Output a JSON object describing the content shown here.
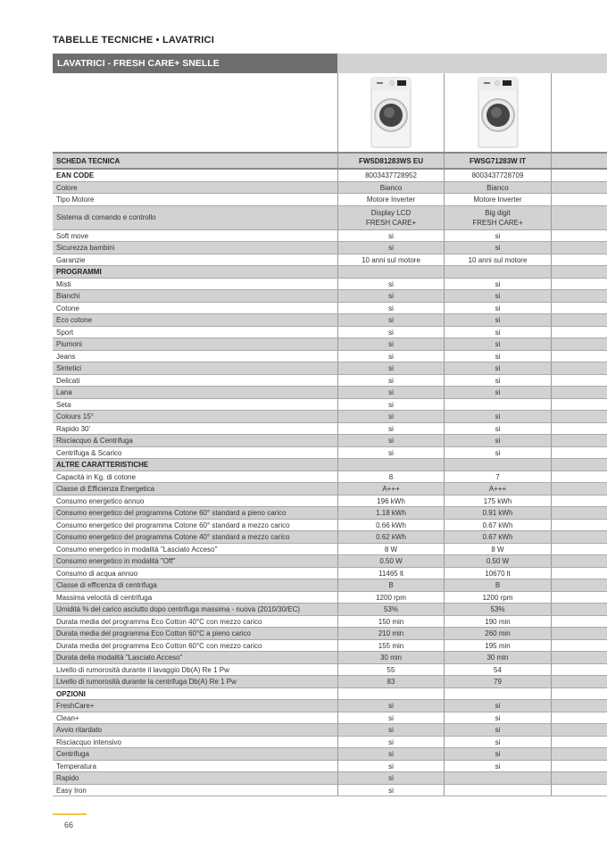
{
  "page_title": "TABELLE TECNICHE • LAVATRICI",
  "table_title": "LAVATRICI - FRESH CARE+ SNELLE",
  "header": {
    "label": "SCHEDA TECNICA",
    "models": [
      "FWSD81283WS EU",
      "FWSG71283W IT",
      ""
    ]
  },
  "rows": [
    {
      "label": "EAN CODE",
      "bold": true,
      "v": [
        "8003437728952",
        "8003437728709",
        ""
      ]
    },
    {
      "label": "Colore",
      "v": [
        "Bianco",
        "Bianco",
        ""
      ]
    },
    {
      "label": "Tipo Motore",
      "v": [
        "Motore Inverter",
        "Motore Inverter",
        ""
      ]
    },
    {
      "label": "Sistema di comando e controllo",
      "double": true,
      "v": [
        "Display LCD\nFRESH CARE+",
        "Big digit\nFRESH CARE+",
        ""
      ]
    },
    {
      "label": "Soft move",
      "v": [
        "si",
        "si",
        ""
      ]
    },
    {
      "label": "Sicurezza bambini",
      "v": [
        "si",
        "si",
        ""
      ]
    },
    {
      "label": "Garanzie",
      "v": [
        "10 anni sul motore",
        "10 anni sul motore",
        ""
      ]
    },
    {
      "label": "PROGRAMMI",
      "bold": true,
      "v": [
        "",
        "",
        ""
      ]
    },
    {
      "label": "Misti",
      "v": [
        "si",
        "si",
        ""
      ]
    },
    {
      "label": "Bianchi",
      "v": [
        "si",
        "si",
        ""
      ]
    },
    {
      "label": "Cotone",
      "v": [
        "si",
        "si",
        ""
      ]
    },
    {
      "label": "Eco cotone",
      "v": [
        "si",
        "si",
        ""
      ]
    },
    {
      "label": "Sport",
      "v": [
        "si",
        "si",
        ""
      ]
    },
    {
      "label": "Piumoni",
      "v": [
        "si",
        "si",
        ""
      ]
    },
    {
      "label": "Jeans",
      "v": [
        "si",
        "si",
        ""
      ]
    },
    {
      "label": "Sintetici",
      "v": [
        "si",
        "si",
        ""
      ]
    },
    {
      "label": "Delicati",
      "v": [
        "si",
        "si",
        ""
      ]
    },
    {
      "label": "Lana",
      "v": [
        "si",
        "si",
        ""
      ]
    },
    {
      "label": "Seta",
      "v": [
        "si",
        "",
        ""
      ]
    },
    {
      "label": "Colours 15°",
      "v": [
        "si",
        "si",
        ""
      ]
    },
    {
      "label": "Rapido 30'",
      "v": [
        "si",
        "si",
        ""
      ]
    },
    {
      "label": "Risciacquo & Centrifuga",
      "v": [
        "si",
        "si",
        ""
      ]
    },
    {
      "label": "Centrifuga & Scarico",
      "v": [
        "si",
        "si",
        ""
      ]
    },
    {
      "label": "ALTRE CARATTERISTICHE",
      "bold": true,
      "v": [
        "",
        "",
        ""
      ]
    },
    {
      "label": "Capacità in Kg. di cotone",
      "v": [
        "8",
        "7",
        ""
      ]
    },
    {
      "label": "Classe di Efficienza Energetica",
      "v": [
        "A+++",
        "A+++",
        ""
      ]
    },
    {
      "label": "Consumo energetico annuo",
      "v": [
        "196 kWh",
        "175 kWh",
        ""
      ]
    },
    {
      "label": "Consumo energetico del programma Cotone 60° standard a pieno carico",
      "v": [
        "1.18 kWh",
        "0.91 kWh",
        ""
      ]
    },
    {
      "label": "Consumo energetico del programma Cotone 60° standard a mezzo carico",
      "v": [
        "0.66 kWh",
        "0.67 kWh",
        ""
      ]
    },
    {
      "label": "Consumo energetico del programma Cotone 40° standard a mezzo carico",
      "v": [
        "0.62 kWh",
        "0.67 kWh",
        ""
      ]
    },
    {
      "label": "Consumo energetico in modalità \"Lasciato Acceso\"",
      "v": [
        "8 W",
        "8 W",
        ""
      ]
    },
    {
      "label": "Consumo energetico in modalità \"Off\"",
      "v": [
        "0.50 W",
        "0.50 W",
        ""
      ]
    },
    {
      "label": "Consumo di acqua annuo",
      "v": [
        "11465 lt",
        "10670 lt",
        ""
      ]
    },
    {
      "label": "Classe di efficenza di centrifuga",
      "v": [
        "B",
        "B",
        ""
      ]
    },
    {
      "label": "Massima velocità di centrifuga",
      "v": [
        "1200 rpm",
        "1200 rpm",
        ""
      ]
    },
    {
      "label": "Umidità % del carico asciutto dopo centrifuga massima - nuova (2010/30/EC)",
      "v": [
        "53%",
        "53%",
        ""
      ]
    },
    {
      "label": "Durata media del programma Eco Cotton 40°C con mezzo carico",
      "v": [
        "150 min",
        "190 min",
        ""
      ]
    },
    {
      "label": "Durata media del programma Eco Cotton 60°C a pieno carico",
      "v": [
        "210 min",
        "260 min",
        ""
      ]
    },
    {
      "label": "Durata media del programma Eco Cotton 60°C con mezzo carico",
      "v": [
        "155 min",
        "195 min",
        ""
      ]
    },
    {
      "label": "Durata della modalità \"Lasciato Acceso\"",
      "v": [
        "30 min",
        "30 min",
        ""
      ]
    },
    {
      "label": "Livello di rumorosità durante il lavaggio Db(A) Re 1 Pw",
      "v": [
        "55",
        "54",
        ""
      ]
    },
    {
      "label": "Livello di rumorosità durante la centrifuga Db(A) Re 1 Pw",
      "v": [
        "83",
        "79",
        ""
      ]
    },
    {
      "label": "OPZIONI",
      "bold": true,
      "v": [
        "",
        "",
        ""
      ]
    },
    {
      "label": "FreshCare+",
      "v": [
        "si",
        "si",
        ""
      ]
    },
    {
      "label": "Clean+",
      "v": [
        "si",
        "si",
        ""
      ]
    },
    {
      "label": "Avvio ritardato",
      "v": [
        "si",
        "si",
        ""
      ]
    },
    {
      "label": "Risciacquo intensivo",
      "v": [
        "si",
        "si",
        ""
      ]
    },
    {
      "label": "Centrifuga",
      "v": [
        "si",
        "si",
        ""
      ]
    },
    {
      "label": "Temperatura",
      "v": [
        "si",
        "si",
        ""
      ]
    },
    {
      "label": "Rapido",
      "v": [
        "si",
        "",
        ""
      ]
    },
    {
      "label": "Easy Iron",
      "v": [
        "si",
        "",
        ""
      ]
    }
  ],
  "page_number": "66",
  "colors": {
    "header_dark": "#6e6e6e",
    "row_grey": "#d2d2d2",
    "page_accent": "#f2c24a"
  }
}
